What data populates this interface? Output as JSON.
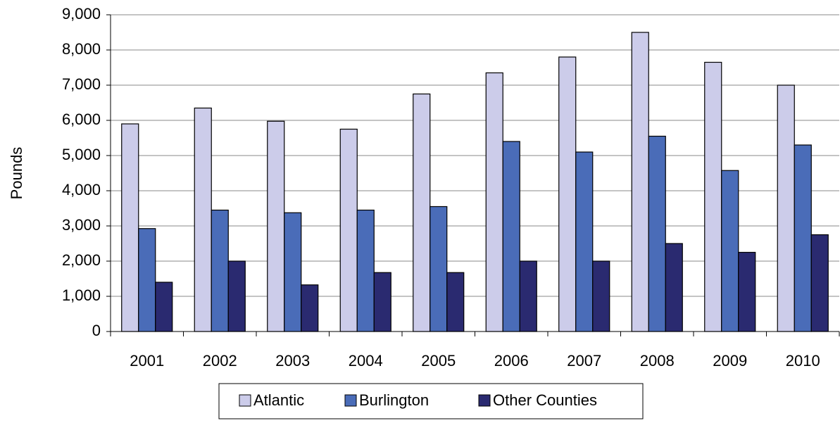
{
  "chart_data": {
    "type": "bar",
    "y_axis_label": "Pounds",
    "categories": [
      "2001",
      "2002",
      "2003",
      "2004",
      "2005",
      "2006",
      "2007",
      "2008",
      "2009",
      "2010"
    ],
    "series": [
      {
        "name": "Atlantic",
        "color": "#ccccea",
        "values": [
          5900,
          6350,
          5975,
          5750,
          6750,
          7350,
          7800,
          8500,
          7650,
          7000
        ]
      },
      {
        "name": "Burlington",
        "color": "#4a6cb8",
        "values": [
          2925,
          3450,
          3375,
          3450,
          3550,
          5400,
          5100,
          5550,
          4575,
          5300
        ]
      },
      {
        "name": "Other Counties",
        "color": "#2a2a70",
        "values": [
          1400,
          2000,
          1325,
          1675,
          1675,
          2000,
          2000,
          2500,
          2250,
          2750
        ]
      }
    ],
    "ylim": [
      0,
      9000
    ],
    "yticks": [
      0,
      {
        "value": 1000,
        "label": "1,000"
      },
      {
        "value": 2000,
        "label": "2,000"
      },
      {
        "value": 3000,
        "label": "3,000"
      },
      {
        "value": 4000,
        "label": "4,000"
      },
      {
        "value": 5000,
        "label": "5,000"
      },
      {
        "value": 6000,
        "label": "6,000"
      },
      {
        "value": 7000,
        "label": "7,000"
      },
      {
        "value": 8000,
        "label": "8,000"
      },
      {
        "value": 9000,
        "label": "9,000"
      }
    ],
    "grid": true,
    "legend": "bottom"
  }
}
